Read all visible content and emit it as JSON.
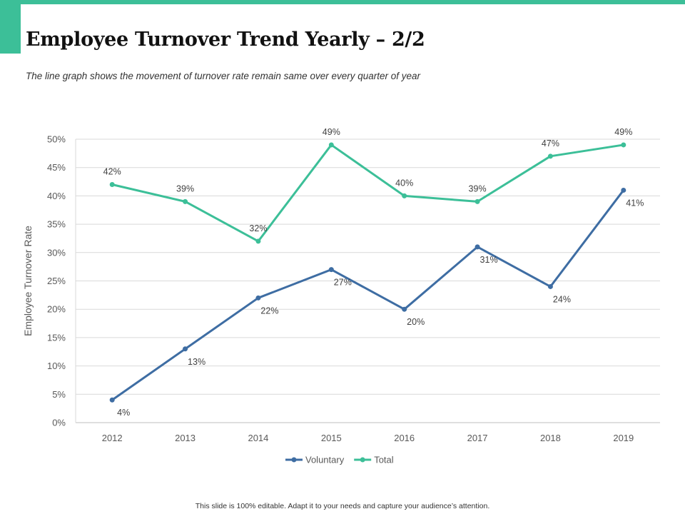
{
  "page": {
    "title": "Employee Turnover Trend Yearly – 2/2",
    "subtitle": "The line graph shows the movement of turnover rate remain same over every quarter of year",
    "footer": "This slide is 100% editable.  Adapt it to your needs and capture your audience’s attention."
  },
  "colors": {
    "accent": "#3cbf98",
    "voluntary": "#3e6da3",
    "total": "#3cbf98"
  },
  "chart_data": {
    "type": "line",
    "categories": [
      "2012",
      "2013",
      "2014",
      "2015",
      "2016",
      "2017",
      "2018",
      "2019"
    ],
    "series": [
      {
        "name": "Voluntary",
        "values": [
          4,
          13,
          22,
          27,
          20,
          31,
          24,
          41
        ],
        "labels": [
          "4%",
          "13%",
          "22%",
          "27%",
          "20%",
          "31%",
          "24%",
          "41%"
        ]
      },
      {
        "name": "Total",
        "values": [
          42,
          39,
          32,
          49,
          40,
          39,
          47,
          49
        ],
        "labels": [
          "42%",
          "39%",
          "32%",
          "49%",
          "40%",
          "39%",
          "47%",
          "49%"
        ]
      }
    ],
    "ylabel": "Employee Turnover Rate",
    "xlabel": "",
    "ylim": [
      0,
      50
    ],
    "yticks": [
      "0%",
      "5%",
      "10%",
      "15%",
      "20%",
      "25%",
      "30%",
      "35%",
      "40%",
      "45%",
      "50%"
    ],
    "grid": true,
    "legend": "bottom"
  }
}
